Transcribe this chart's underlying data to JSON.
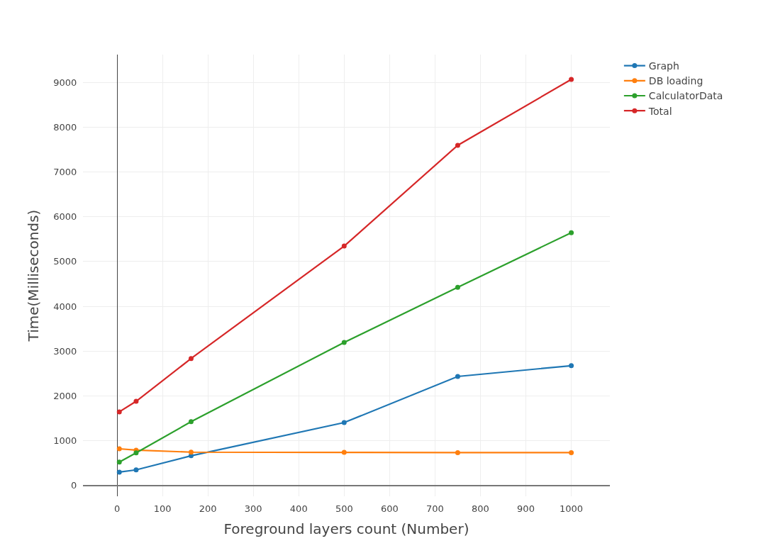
{
  "chart_data": {
    "type": "line",
    "xlabel": "Foreground layers count (Number)",
    "ylabel": "Time(Milliseconds)",
    "x": [
      5,
      42,
      163,
      500,
      750,
      1000
    ],
    "series": [
      {
        "name": "Graph",
        "color": "#1f77b4",
        "values": [
          300,
          350,
          665,
          1405,
          2435,
          2675
        ]
      },
      {
        "name": "DB loading",
        "color": "#ff7f0e",
        "values": [
          820,
          790,
          745,
          740,
          735,
          735
        ]
      },
      {
        "name": "CalculatorData",
        "color": "#2ca02c",
        "values": [
          525,
          730,
          1425,
          3195,
          4425,
          5645
        ]
      },
      {
        "name": "Total",
        "color": "#d62728",
        "values": [
          1645,
          1880,
          2835,
          5345,
          7595,
          9065
        ]
      }
    ],
    "xlim": [
      -75,
      1085
    ],
    "ylim": [
      -240,
      9620
    ],
    "xticks": [
      0,
      100,
      200,
      300,
      400,
      500,
      600,
      700,
      800,
      900,
      1000
    ],
    "yticks": [
      0,
      1000,
      2000,
      3000,
      4000,
      5000,
      6000,
      7000,
      8000,
      9000
    ],
    "grid": true,
    "legend": "top right",
    "marker": "circle",
    "line_style": "solid"
  }
}
